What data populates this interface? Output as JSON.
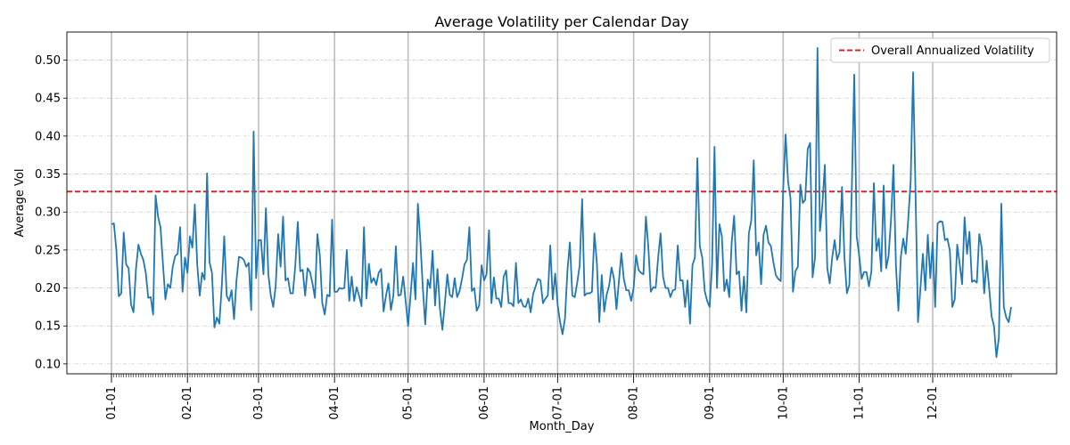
{
  "chart_data": {
    "type": "line",
    "title": "Average Volatility per Calendar Day",
    "xlabel": "Month_Day",
    "ylabel": "Average Vol",
    "x_tick_labels": [
      "01-01",
      "02-01",
      "03-01",
      "04-01",
      "05-01",
      "06-01",
      "07-01",
      "08-01",
      "09-01",
      "10-01",
      "11-01",
      "12-01"
    ],
    "month_lengths": [
      31,
      29,
      31,
      30,
      31,
      30,
      31,
      31,
      30,
      31,
      30,
      31
    ],
    "y_ticks": [
      0.1,
      0.15,
      0.2,
      0.25,
      0.3,
      0.35,
      0.4,
      0.45,
      0.5
    ],
    "ylim": [
      0.087,
      0.537
    ],
    "grid": "y dash-dot, vertical lines at month starts",
    "legend_placement": "top-right",
    "colors": {
      "series": "#1f77b4",
      "reference": "#d62728",
      "month_lines": "#bdbdbd",
      "grid": "#cccccc"
    },
    "reference_line": {
      "name": "Overall Annualized Volatility",
      "value": 0.327
    },
    "series": [
      {
        "values": [
          0.284,
          0.285,
          0.25,
          0.189,
          0.193,
          0.273,
          0.231,
          0.226,
          0.178,
          0.168,
          0.225,
          0.257,
          0.245,
          0.237,
          0.22,
          0.187,
          0.188,
          0.165,
          0.322,
          0.294,
          0.28,
          0.232,
          0.185,
          0.205,
          0.2,
          0.228,
          0.242,
          0.245,
          0.28,
          0.195,
          0.24,
          0.22,
          0.268,
          0.253,
          0.31,
          0.23,
          0.19,
          0.22,
          0.211,
          0.351,
          0.234,
          0.22,
          0.148,
          0.161,
          0.153,
          0.202,
          0.268,
          0.19,
          0.183,
          0.197,
          0.159,
          0.21,
          0.241,
          0.24,
          0.237,
          0.228,
          0.233,
          0.171,
          0.406,
          0.213,
          0.263,
          0.263,
          0.218,
          0.305,
          0.218,
          0.19,
          0.175,
          0.203,
          0.271,
          0.228,
          0.294,
          0.21,
          0.213,
          0.193,
          0.193,
          0.23,
          0.287,
          0.222,
          0.224,
          0.19,
          0.226,
          0.221,
          0.206,
          0.187,
          0.271,
          0.243,
          0.18,
          0.165,
          0.191,
          0.189,
          0.29,
          0.195,
          0.195,
          0.2,
          0.199,
          0.2,
          0.25,
          0.183,
          0.215,
          0.183,
          0.201,
          0.19,
          0.176,
          0.28,
          0.186,
          0.232,
          0.207,
          0.213,
          0.204,
          0.22,
          0.225,
          0.169,
          0.19,
          0.206,
          0.171,
          0.19,
          0.255,
          0.19,
          0.191,
          0.215,
          0.183,
          0.15,
          0.19,
          0.233,
          0.185,
          0.311,
          0.262,
          0.201,
          0.152,
          0.211,
          0.2,
          0.249,
          0.177,
          0.225,
          0.172,
          0.145,
          0.18,
          0.218,
          0.191,
          0.188,
          0.213,
          0.188,
          0.196,
          0.212,
          0.231,
          0.237,
          0.28,
          0.196,
          0.2,
          0.17,
          0.177,
          0.23,
          0.21,
          0.218,
          0.276,
          0.18,
          0.214,
          0.186,
          0.186,
          0.175,
          0.215,
          0.223,
          0.18,
          0.18,
          0.176,
          0.233,
          0.18,
          0.185,
          0.176,
          0.175,
          0.186,
          0.168,
          0.192,
          0.202,
          0.212,
          0.21,
          0.18,
          0.186,
          0.19,
          0.256,
          0.185,
          0.219,
          0.178,
          0.155,
          0.139,
          0.16,
          0.223,
          0.26,
          0.19,
          0.188,
          0.207,
          0.23,
          0.317,
          0.19,
          0.193,
          0.193,
          0.195,
          0.272,
          0.233,
          0.155,
          0.217,
          0.169,
          0.191,
          0.203,
          0.227,
          0.212,
          0.172,
          0.209,
          0.246,
          0.212,
          0.197,
          0.197,
          0.183,
          0.2,
          0.243,
          0.224,
          0.22,
          0.218,
          0.294,
          0.254,
          0.195,
          0.201,
          0.2,
          0.24,
          0.272,
          0.215,
          0.2,
          0.2,
          0.188,
          0.197,
          0.198,
          0.256,
          0.21,
          0.21,
          0.175,
          0.21,
          0.153,
          0.23,
          0.24,
          0.371,
          0.255,
          0.24,
          0.196,
          0.183,
          0.175,
          0.23,
          0.386,
          0.2,
          0.284,
          0.268,
          0.196,
          0.211,
          0.188,
          0.26,
          0.295,
          0.218,
          0.222,
          0.17,
          0.215,
          0.168,
          0.272,
          0.289,
          0.368,
          0.243,
          0.26,
          0.205,
          0.27,
          0.282,
          0.26,
          0.255,
          0.234,
          0.217,
          0.212,
          0.209,
          0.33,
          0.402,
          0.34,
          0.318,
          0.195,
          0.222,
          0.228,
          0.336,
          0.312,
          0.316,
          0.383,
          0.391,
          0.214,
          0.24,
          0.516,
          0.275,
          0.31,
          0.362,
          0.226,
          0.206,
          0.24,
          0.263,
          0.237,
          0.247,
          0.333,
          0.24,
          0.193,
          0.204,
          0.33,
          0.481,
          0.268,
          0.243,
          0.212,
          0.221,
          0.221,
          0.202,
          0.222,
          0.338,
          0.249,
          0.265,
          0.222,
          0.335,
          0.226,
          0.242,
          0.29,
          0.362,
          0.23,
          0.17,
          0.241,
          0.265,
          0.245,
          0.29,
          0.34,
          0.484,
          0.325,
          0.155,
          0.2,
          0.245,
          0.197,
          0.27,
          0.213,
          0.26,
          0.175,
          0.285,
          0.288,
          0.287,
          0.263,
          0.265,
          0.249,
          0.175,
          0.185,
          0.257,
          0.232,
          0.205,
          0.293,
          0.245,
          0.274,
          0.208,
          0.21,
          0.207,
          0.271,
          0.253,
          0.193,
          0.236,
          0.201,
          0.163,
          0.15,
          0.109,
          0.135,
          0.311,
          0.175,
          0.161,
          0.155,
          0.175
        ]
      }
    ]
  }
}
